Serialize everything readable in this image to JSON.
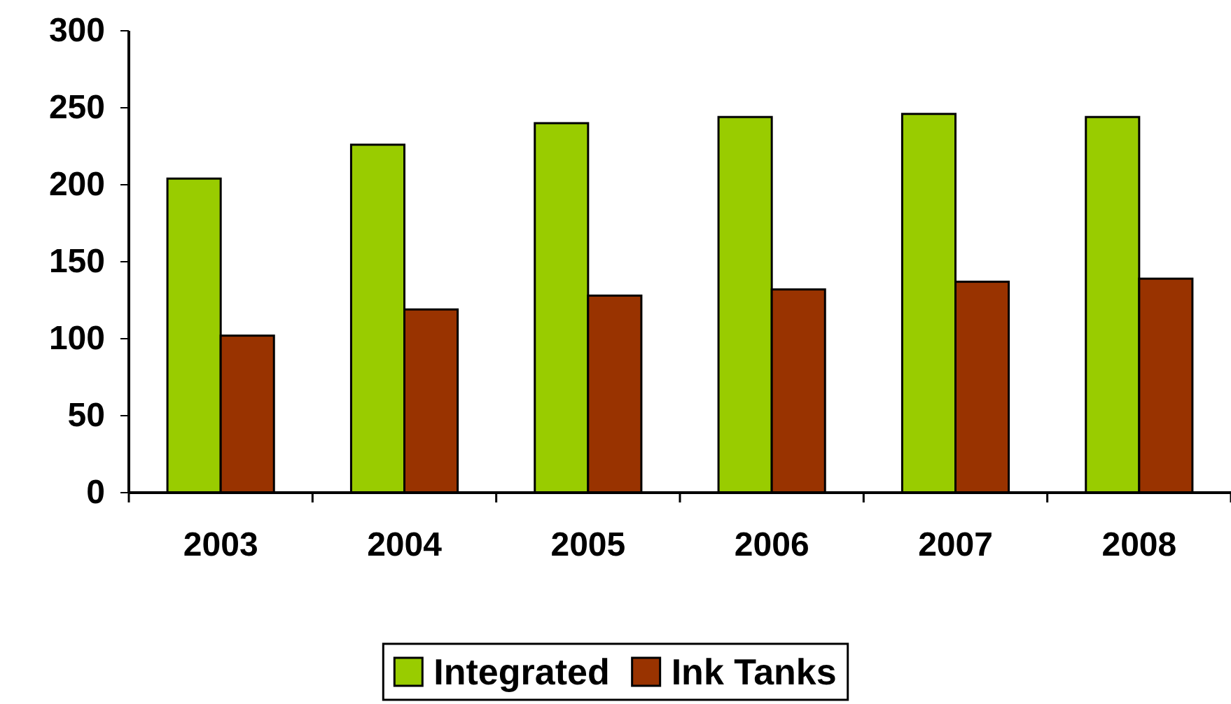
{
  "chart_data": {
    "type": "bar",
    "categories": [
      "2003",
      "2004",
      "2005",
      "2006",
      "2007",
      "2008"
    ],
    "series": [
      {
        "name": "Integrated",
        "color": "#99cc00",
        "values": [
          204,
          226,
          240,
          244,
          246,
          244
        ]
      },
      {
        "name": "Ink Tanks",
        "color": "#993300",
        "values": [
          102,
          119,
          128,
          132,
          137,
          139
        ]
      }
    ],
    "ylim": [
      0,
      300
    ],
    "yticks": [
      0,
      50,
      100,
      150,
      200,
      250,
      300
    ],
    "grid": false,
    "legend": "bottom"
  }
}
